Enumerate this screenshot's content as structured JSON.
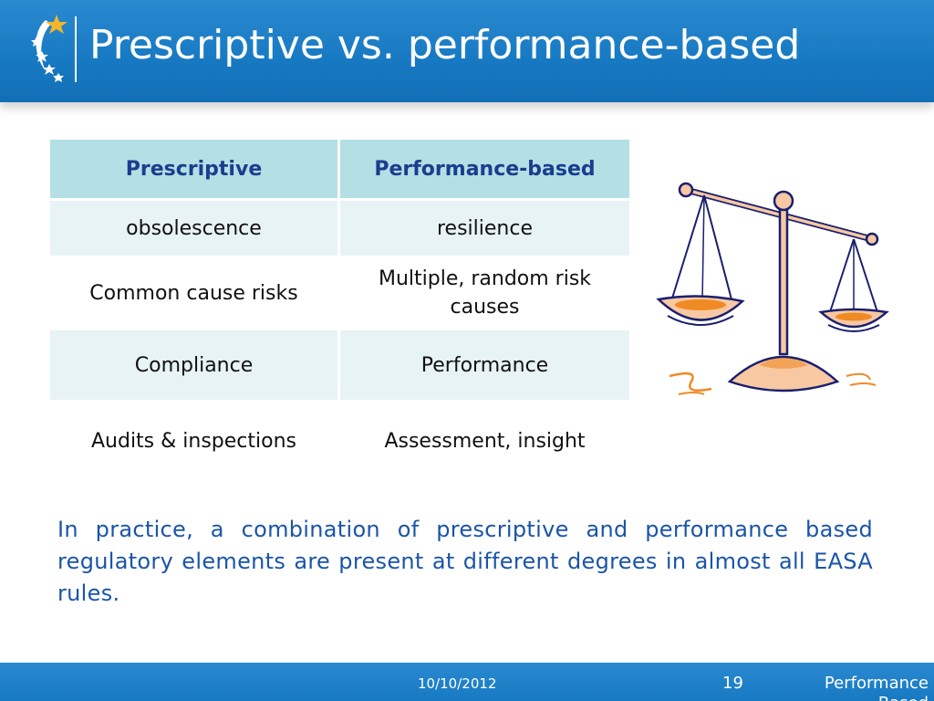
{
  "header": {
    "title": "Prescriptive vs. performance-based",
    "logo_icon": "easa-star-logo-icon",
    "background": "#1779c2"
  },
  "table": {
    "headers": [
      "Prescriptive",
      "Performance-based"
    ],
    "rows": [
      [
        "obsolescence",
        "resilience"
      ],
      [
        "Common cause risks",
        "Multiple, random risk causes"
      ],
      [
        "Compliance",
        "Performance"
      ],
      [
        "Audits & inspections",
        "Assessment, insight"
      ]
    ],
    "header_color": "#b4dfe4",
    "header_text_color": "#1a3d8f"
  },
  "illustration": {
    "icon": "balance-scale-icon",
    "accent": "#f08a24"
  },
  "body": {
    "paragraph": "In practice, a combination of prescriptive and performance based regulatory elements are present at different degrees in almost all EASA rules.",
    "text_color": "#1a55a8"
  },
  "footer": {
    "date": "10/10/2012",
    "page_number": "19",
    "label": "Performance Based"
  }
}
